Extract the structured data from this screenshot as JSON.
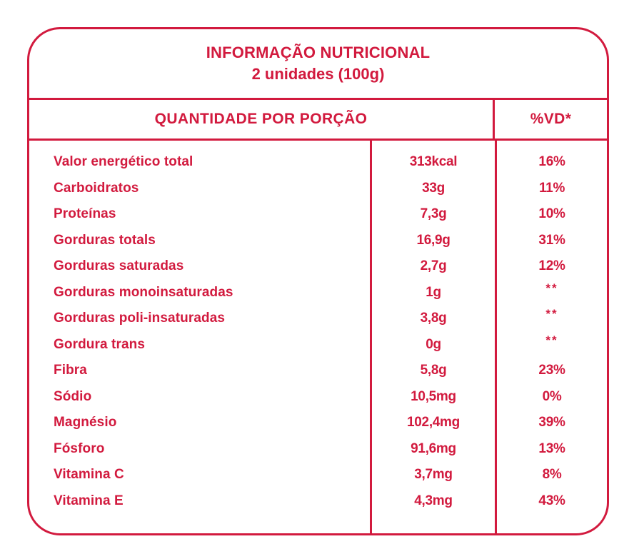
{
  "label": {
    "accent_color": "#D21A3E",
    "title_line1": "INFORMAÇÃO NUTRICIONAL",
    "title_line2": "2 unidades (100g)",
    "header": {
      "quantity": "QUANTIDADE POR PORÇÃO",
      "vd": "%VD*"
    },
    "rows": [
      {
        "name": "Valor energético total",
        "amount": "313kcal",
        "vd": "16%"
      },
      {
        "name": "Carboidratos",
        "amount": "33g",
        "vd": "11%"
      },
      {
        "name": "Proteínas",
        "amount": "7,3g",
        "vd": "10%"
      },
      {
        "name": "Gorduras totals",
        "amount": "16,9g",
        "vd": "31%"
      },
      {
        "name": "Gorduras saturadas",
        "amount": "2,7g",
        "vd": "12%"
      },
      {
        "name": "Gorduras monoinsaturadas",
        "amount": "1g",
        "vd": "**"
      },
      {
        "name": "Gorduras poli-insaturadas",
        "amount": "3,8g",
        "vd": "**"
      },
      {
        "name": "Gordura trans",
        "amount": "0g",
        "vd": "**"
      },
      {
        "name": "Fibra",
        "amount": "5,8g",
        "vd": "23%"
      },
      {
        "name": "Sódio",
        "amount": "10,5mg",
        "vd": "0%"
      },
      {
        "name": "Magnésio",
        "amount": "102,4mg",
        "vd": "39%"
      },
      {
        "name": "Fósforo",
        "amount": "91,6mg",
        "vd": "13%"
      },
      {
        "name": "Vitamina C",
        "amount": "3,7mg",
        "vd": "8%"
      },
      {
        "name": "Vitamina E",
        "amount": "4,3mg",
        "vd": "43%"
      }
    ]
  }
}
